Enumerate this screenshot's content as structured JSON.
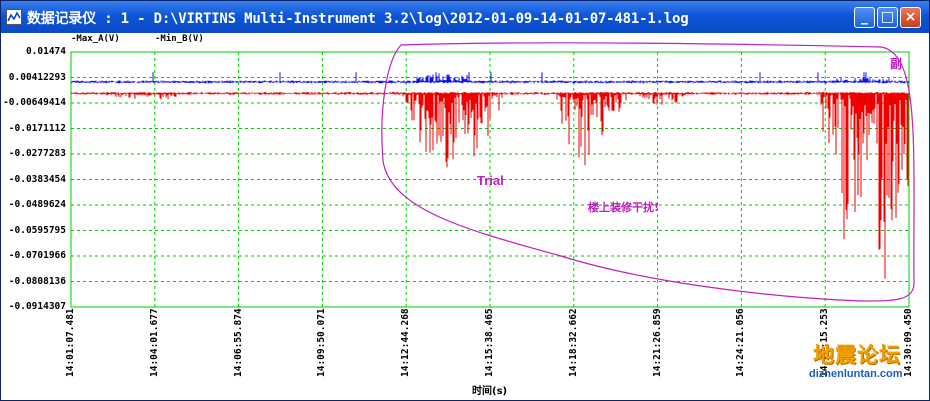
{
  "window": {
    "title": "数据记录仪 : 1 - D:\\VIRTINS Multi-Instrument 3.2\\log\\2012-01-09-14-01-07-481-1.log",
    "minimize_label": "_",
    "maximize_label": "□",
    "close_label": "×",
    "icon": "chart-icon"
  },
  "legend": {
    "a_label": "-Max_A(V)",
    "b_label": "-Min_B(V)",
    "a_color": "#0000cc",
    "b_color": "#dd0000"
  },
  "colors": {
    "grid": "#00cc00",
    "series_a": "#1010ee",
    "series_b": "#ee0000",
    "annotation": "#c020c0"
  },
  "chart_data": {
    "type": "line",
    "title": "",
    "xlabel": "时间(s)",
    "ylabel": "",
    "y_ticks": [
      "0.01474",
      "0.00412293",
      "-0.00649414",
      "-0.0171112",
      "-0.0277283",
      "-0.0383454",
      "-0.0489624",
      "-0.0595795",
      "-0.0701966",
      "-0.0808136",
      "-0.0914307"
    ],
    "ylim": [
      -0.0914307,
      0.01474
    ],
    "x_ticks": [
      "14:01:07.481",
      "14:04:01.677",
      "14:06:55.874",
      "14:09:50.071",
      "14:12:44.268",
      "14:15:38.465",
      "14:18:32.662",
      "14:21:26.859",
      "14:24:21.056",
      "14:27:15.253",
      "14:30:09.450"
    ],
    "grid": true,
    "series": [
      {
        "name": "Max_A(V)",
        "baseline": 0.0023,
        "noise": 0.0006,
        "bursts": [
          {
            "from": "14:12:44.268",
            "to": "14:15:38.465",
            "peak": 0.006
          },
          {
            "from": "14:27:15.253",
            "to": "14:30:09.450",
            "peak": 0.004
          }
        ]
      },
      {
        "name": "Min_B(V)",
        "baseline": -0.0025,
        "noise": 0.0006,
        "dips": [
          {
            "at": "14:03:10.000",
            "min": -0.006
          },
          {
            "at": "14:04:20.000",
            "min": -0.0055
          },
          {
            "at": "14:13:30.000",
            "min": -0.035
          },
          {
            "at": "14:14:15.000",
            "min": -0.038
          },
          {
            "at": "14:15:10.000",
            "min": -0.033
          },
          {
            "at": "14:18:50.000",
            "min": -0.042
          },
          {
            "at": "14:19:30.000",
            "min": -0.022
          },
          {
            "at": "14:21:40.000",
            "min": -0.01
          },
          {
            "at": "14:28:00.000",
            "min": -0.085
          },
          {
            "at": "14:29:20.000",
            "min": -0.0914
          },
          {
            "at": "14:29:45.000",
            "min": -0.07
          }
        ]
      }
    ],
    "annotations": {
      "trial": "Trial",
      "interference": "楼上装修干扰!",
      "corner_mark": "副"
    }
  },
  "watermark": {
    "cn": "地震论坛",
    "url": "dizhenluntan.com"
  }
}
